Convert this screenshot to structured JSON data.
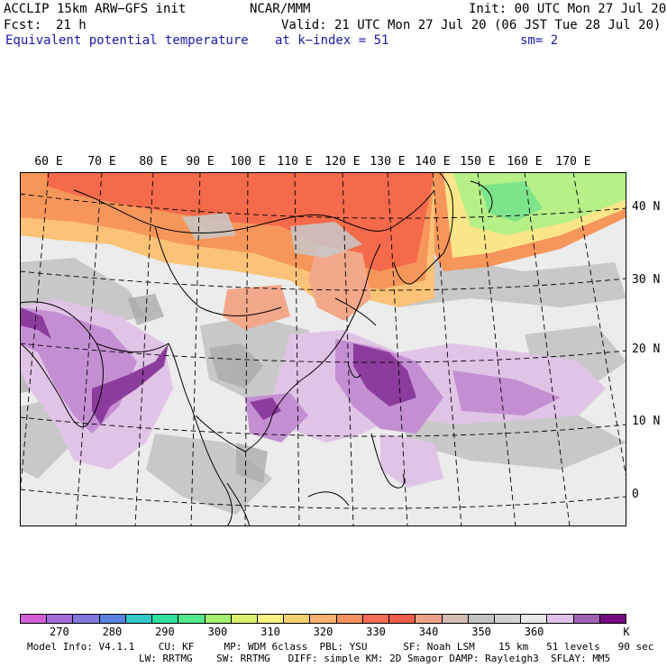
{
  "header": {
    "model": "ACCLIP 15km ARW−GFS init",
    "center": "NCAR/MMM",
    "init": "Init: 00 UTC Mon 27 Jul 20",
    "fcst_label": "Fcst:",
    "fcst_value": "21 h",
    "valid": "Valid: 21 UTC Mon 27 Jul 20 (06 JST Tue 28 Jul 20)",
    "field": "Equivalent potential temperature",
    "level": "at k−index =  51",
    "smoothing": "sm= 2"
  },
  "map": {
    "lon_labels": [
      "60 E",
      "70 E",
      "80 E",
      "90 E",
      "100 E",
      "110 E",
      "120 E",
      "130 E",
      "140 E",
      "150 E",
      "160 E",
      "170 E"
    ],
    "lat_labels": [
      "40 N",
      "30 N",
      "20 N",
      "10 N",
      "0"
    ],
    "colors": {
      "ocean_light": "#ececec",
      "gray_mid": "#c8c8c8",
      "gray_dark": "#a9a9a9",
      "lavender": "#e0c4e6",
      "purple": "#c48fd2",
      "purple_dark": "#8c3c9c",
      "purple_deep": "#6a1077",
      "salmon": "#f4a88a",
      "orange_red": "#f46a4a",
      "orange": "#f7965a",
      "yellow_orange": "#fbc278",
      "yellow": "#fce68a",
      "green_light": "#b6f086",
      "green": "#7ee48a"
    }
  },
  "colorbar": {
    "unit": "K",
    "colors": [
      "#d25fd8",
      "#a46cd8",
      "#8178e0",
      "#5a82e0",
      "#32c8c8",
      "#2ee0a0",
      "#54e88c",
      "#a4f070",
      "#dcf070",
      "#f8f080",
      "#f8d070",
      "#fcb070",
      "#f89060",
      "#f86c58",
      "#f45c4c",
      "#f0a288",
      "#d4bcb4",
      "#c2c2c2",
      "#d2d2d2",
      "#e8e8e8",
      "#e0c2e8",
      "#a060b4",
      "#780a84"
    ],
    "labels": [
      "270",
      "280",
      "290",
      "300",
      "310",
      "320",
      "330",
      "340",
      "350",
      "360"
    ]
  },
  "footer": {
    "line1": "Model Info: V4.1.1    CU: KF     MP: WDM 6class  PBL: YSU      SF: Noah LSM    15 km   51 levels   90 sec",
    "line2": "LW: RRTMG    SW: RRTMG   DIFF: simple KM: 2D Smagor DAMP: Rayleigh3  SFLAY: MM5"
  }
}
